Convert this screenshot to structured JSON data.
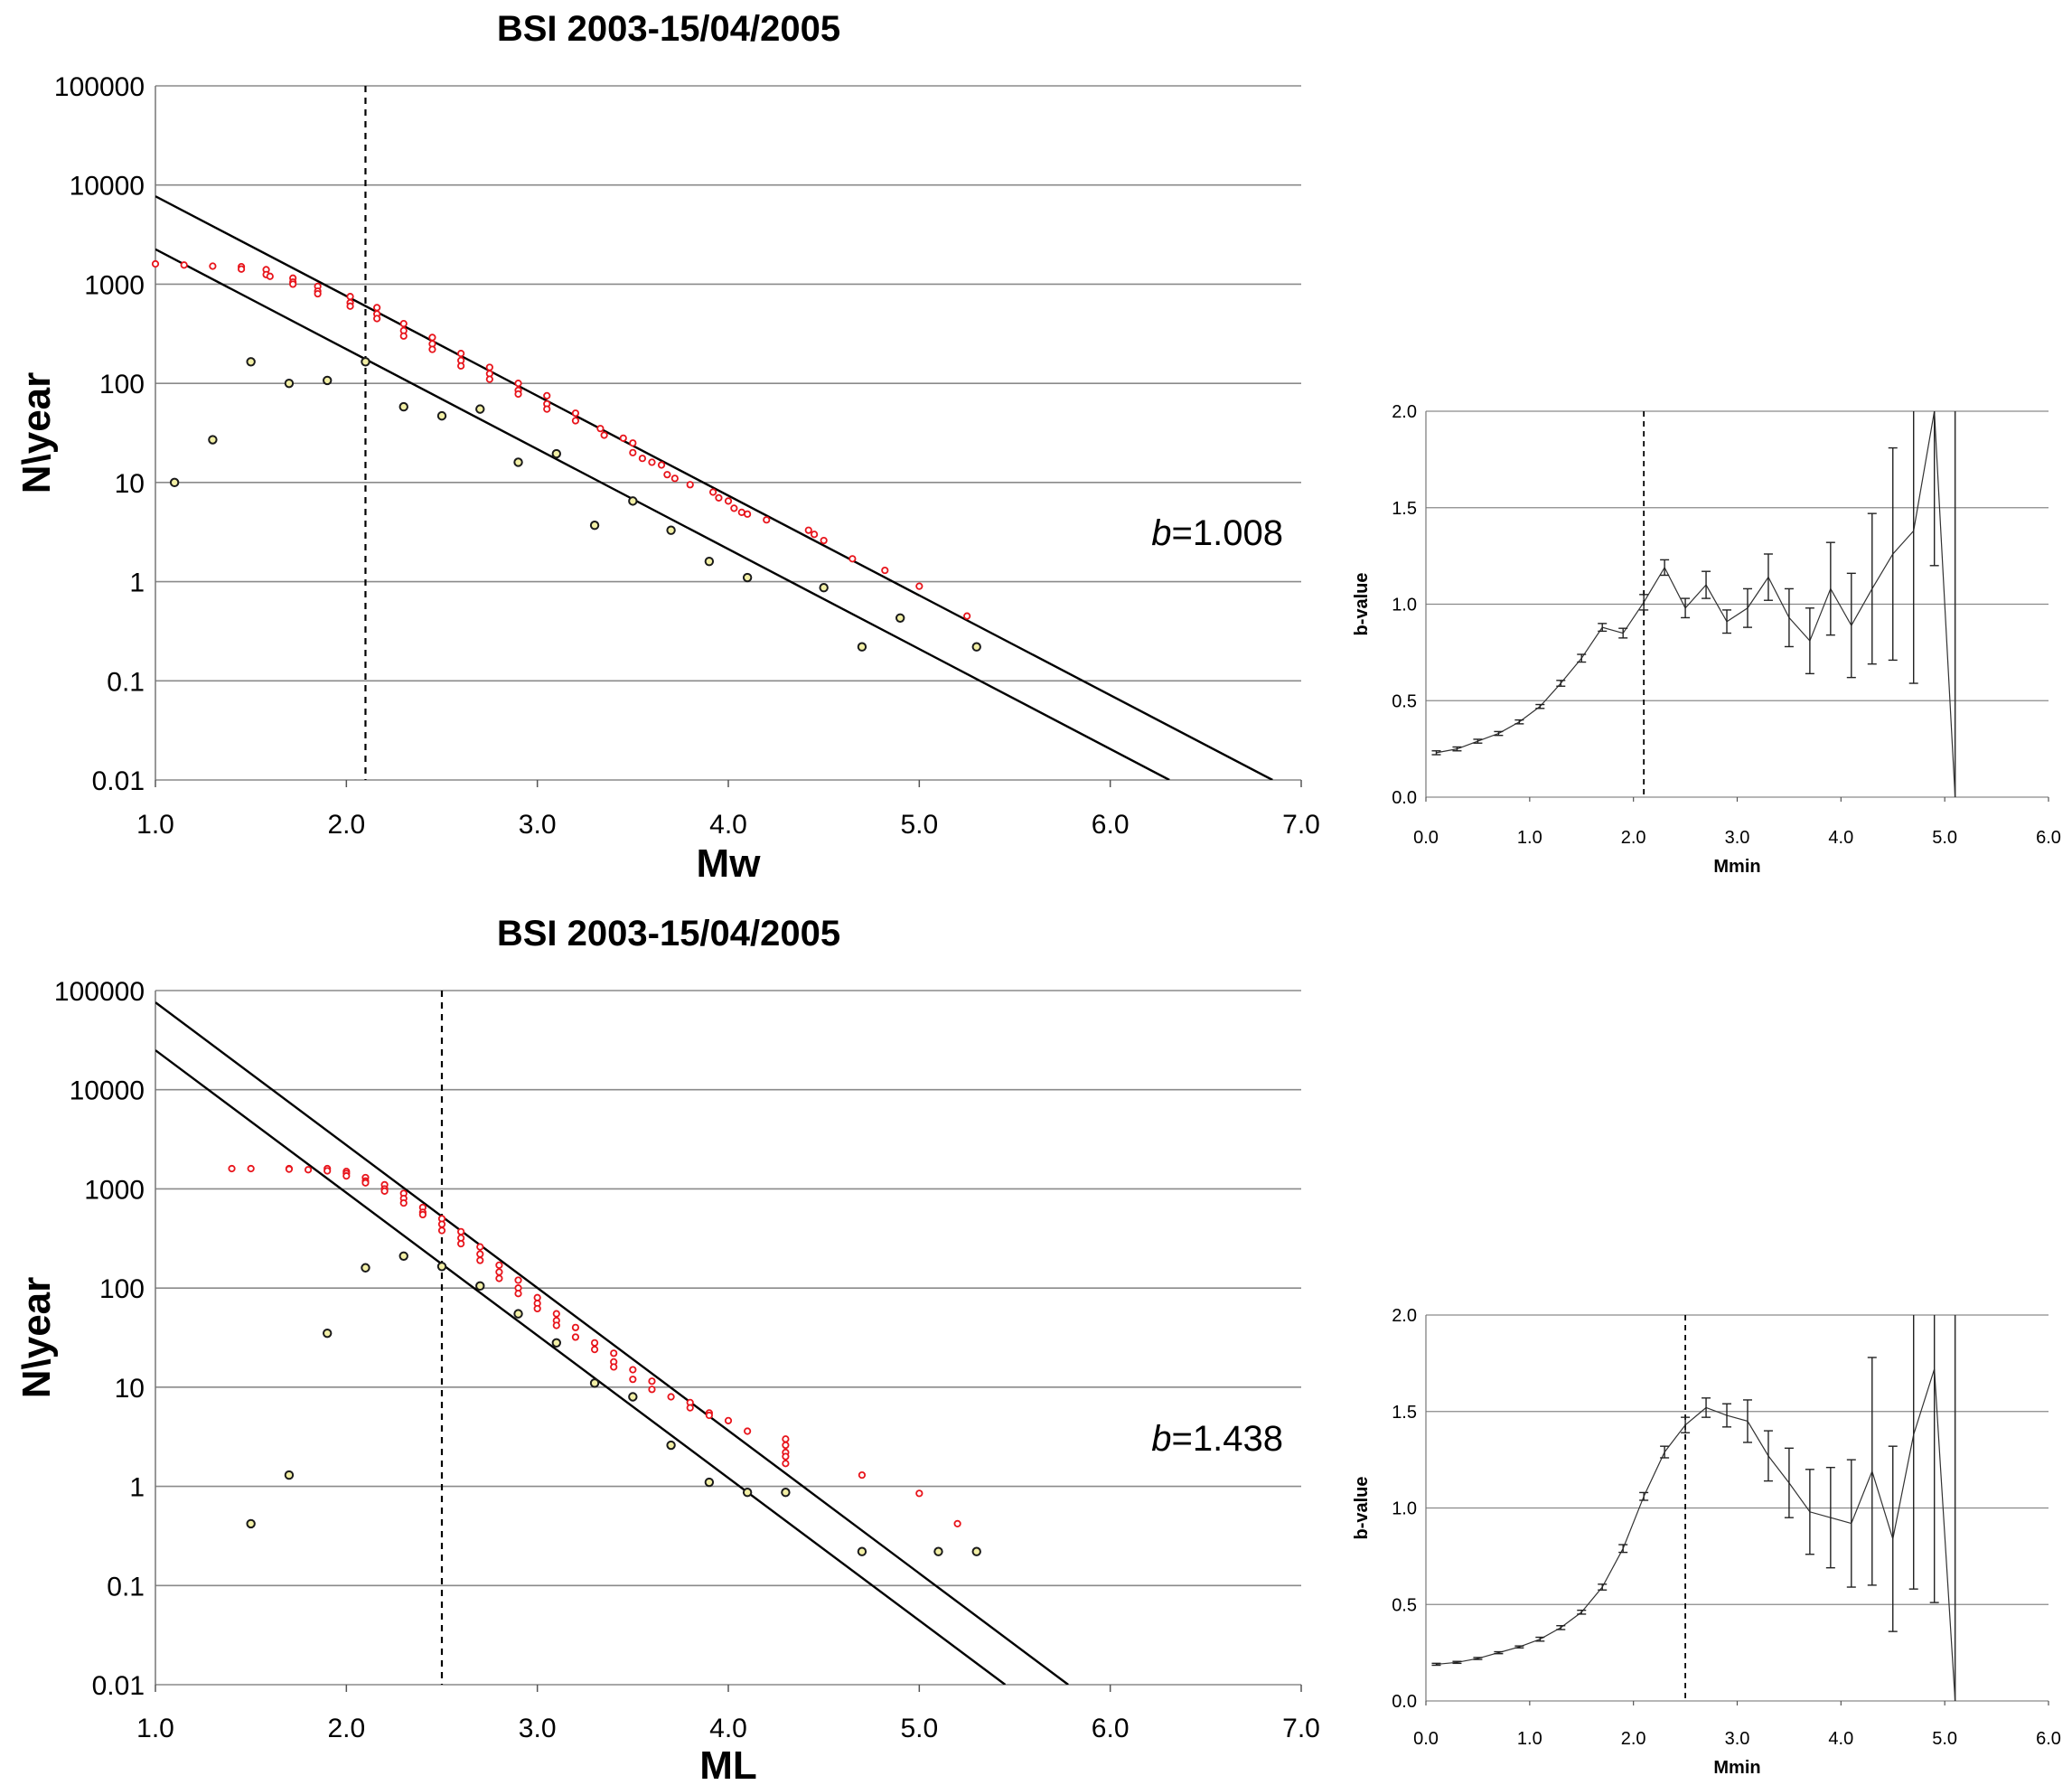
{
  "chart_data": [
    {
      "id": "gr-mw",
      "type": "scatter",
      "title": "BSI 2003-15/04/2005",
      "xlabel": "Mw",
      "ylabel": "N\\year",
      "xlim": [
        1.0,
        7.0
      ],
      "ylim": [
        0.01,
        100000
      ],
      "yscale": "log",
      "xticks": [
        "1.0",
        "2.0",
        "3.0",
        "4.0",
        "5.0",
        "6.0",
        "7.0"
      ],
      "yticks": [
        "0.01",
        "0.1",
        "1",
        "10",
        "100",
        "1000",
        "10000",
        "100000"
      ],
      "grid": "horizontal",
      "annotation": {
        "b_symbol": "b",
        "b_text": "=1.008"
      },
      "vline_x": 2.1,
      "lines": [
        {
          "x": [
            1.0,
            6.85
          ],
          "y": [
            7700,
            0.01
          ]
        },
        {
          "x": [
            1.0,
            6.31
          ],
          "y": [
            2250,
            0.01
          ]
        }
      ],
      "series": [
        {
          "marker": "red-circle",
          "x": [
            1.0,
            1.15,
            1.3,
            1.45,
            1.45,
            1.58,
            1.58,
            1.6,
            1.72,
            1.72,
            1.72,
            1.85,
            1.85,
            1.85,
            2.02,
            2.02,
            2.02,
            2.16,
            2.16,
            2.16,
            2.3,
            2.3,
            2.3,
            2.45,
            2.45,
            2.45,
            2.6,
            2.6,
            2.6,
            2.75,
            2.75,
            2.75,
            2.9,
            2.9,
            2.9,
            3.05,
            3.05,
            3.05,
            3.2,
            3.2,
            3.33,
            3.35,
            3.45,
            3.5,
            3.5,
            3.55,
            3.6,
            3.65,
            3.68,
            3.72,
            3.8,
            3.92,
            3.95,
            4.0,
            4.03,
            4.07,
            4.1,
            4.2,
            4.42,
            4.45,
            4.5,
            4.65,
            4.82,
            5.0,
            5.25
          ],
          "y": [
            1600,
            1560,
            1520,
            1500,
            1420,
            1400,
            1250,
            1200,
            1150,
            1050,
            1000,
            950,
            850,
            800,
            750,
            650,
            600,
            580,
            500,
            450,
            400,
            340,
            300,
            290,
            250,
            220,
            200,
            170,
            150,
            145,
            125,
            110,
            100,
            85,
            78,
            75,
            62,
            55,
            50,
            42,
            35,
            30,
            28,
            25,
            20,
            17.5,
            16,
            15,
            12,
            11,
            9.5,
            8,
            7,
            6.5,
            5.5,
            5,
            4.8,
            4.2,
            3.3,
            3,
            2.6,
            1.7,
            1.3,
            0.9,
            0.45
          ]
        },
        {
          "marker": "black-circle",
          "x": [
            1.1,
            1.3,
            1.5,
            1.7,
            1.9,
            2.1,
            2.3,
            2.5,
            2.7,
            2.9,
            3.1,
            3.3,
            3.5,
            3.7,
            3.9,
            4.1,
            4.5,
            4.7,
            4.9,
            5.3
          ],
          "y": [
            10,
            27,
            165,
            100,
            107,
            165,
            58,
            47,
            55,
            16,
            19.5,
            3.7,
            6.5,
            3.3,
            1.6,
            1.1,
            0.87,
            0.22,
            0.43,
            0.22
          ]
        }
      ]
    },
    {
      "id": "b-mw",
      "type": "line",
      "xlabel": "Mmin",
      "ylabel": "b-value",
      "xlim": [
        0.0,
        6.0
      ],
      "ylim": [
        0.0,
        2.0
      ],
      "xticks": [
        "0.0",
        "1.0",
        "2.0",
        "3.0",
        "4.0",
        "5.0",
        "6.0"
      ],
      "yticks": [
        "0.0",
        "0.5",
        "1.0",
        "1.5",
        "2.0"
      ],
      "grid": "horizontal",
      "vline_x": 2.1,
      "x": [
        0.1,
        0.3,
        0.5,
        0.7,
        0.9,
        1.1,
        1.3,
        1.5,
        1.7,
        1.9,
        2.1,
        2.3,
        2.5,
        2.7,
        2.9,
        3.1,
        3.3,
        3.5,
        3.7,
        3.9,
        4.1,
        4.3,
        4.5,
        4.7,
        4.9,
        5.1
      ],
      "y": [
        0.23,
        0.25,
        0.29,
        0.33,
        0.39,
        0.47,
        0.59,
        0.72,
        0.88,
        0.85,
        1.01,
        1.19,
        0.98,
        1.1,
        0.91,
        0.98,
        1.14,
        0.93,
        0.81,
        1.08,
        0.89,
        1.08,
        1.26,
        1.38,
        2.0,
        0.0
      ],
      "err": [
        0.01,
        0.01,
        0.01,
        0.01,
        0.01,
        0.01,
        0.015,
        0.02,
        0.02,
        0.025,
        0.04,
        0.04,
        0.05,
        0.07,
        0.06,
        0.1,
        0.12,
        0.15,
        0.17,
        0.24,
        0.27,
        0.39,
        0.55,
        0.79,
        0.8,
        0.0
      ]
    },
    {
      "id": "gr-ml",
      "type": "scatter",
      "title": "BSI 2003-15/04/2005",
      "xlabel": "ML",
      "ylabel": "N\\year",
      "xlim": [
        1.0,
        7.0
      ],
      "ylim": [
        0.01,
        100000
      ],
      "yscale": "log",
      "xticks": [
        "1.0",
        "2.0",
        "3.0",
        "4.0",
        "5.0",
        "6.0",
        "7.0"
      ],
      "yticks": [
        "0.01",
        "0.1",
        "1",
        "10",
        "100",
        "1000",
        "10000",
        "100000"
      ],
      "grid": "horizontal",
      "annotation": {
        "b_symbol": "b",
        "b_text": "=1.438"
      },
      "vline_x": 2.5,
      "lines": [
        {
          "x": [
            1.0,
            5.78
          ],
          "y": [
            76000,
            0.01
          ]
        },
        {
          "x": [
            1.0,
            5.45
          ],
          "y": [
            25000,
            0.01
          ]
        }
      ],
      "series": [
        {
          "marker": "red-circle",
          "x": [
            1.4,
            1.5,
            1.7,
            1.7,
            1.8,
            1.9,
            1.9,
            2.0,
            2.0,
            2.0,
            2.1,
            2.1,
            2.1,
            2.2,
            2.2,
            2.2,
            2.3,
            2.3,
            2.3,
            2.4,
            2.4,
            2.4,
            2.5,
            2.5,
            2.5,
            2.6,
            2.6,
            2.6,
            2.7,
            2.7,
            2.7,
            2.8,
            2.8,
            2.8,
            2.9,
            2.9,
            2.9,
            3.0,
            3.0,
            3.0,
            3.1,
            3.1,
            3.1,
            3.2,
            3.2,
            3.3,
            3.3,
            3.4,
            3.4,
            3.4,
            3.5,
            3.5,
            3.6,
            3.6,
            3.7,
            3.8,
            3.8,
            3.9,
            3.9,
            4.0,
            4.1,
            4.3,
            4.3,
            4.3,
            4.3,
            4.3,
            4.7,
            5.0,
            5.2
          ],
          "y": [
            1600,
            1600,
            1600,
            1580,
            1560,
            1600,
            1520,
            1500,
            1430,
            1350,
            1300,
            1200,
            1150,
            1100,
            1000,
            950,
            900,
            800,
            720,
            650,
            580,
            550,
            500,
            440,
            380,
            370,
            320,
            280,
            260,
            220,
            190,
            170,
            145,
            125,
            120,
            100,
            88,
            80,
            70,
            62,
            55,
            47,
            42,
            40,
            32,
            28,
            24,
            22,
            18,
            16,
            15,
            12,
            11.5,
            9.5,
            8,
            7,
            6.2,
            5.5,
            5.2,
            4.6,
            3.6,
            3,
            2.6,
            2.2,
            2.0,
            1.7,
            1.3,
            0.85,
            0.42
          ]
        },
        {
          "marker": "black-circle",
          "x": [
            1.5,
            1.7,
            1.9,
            2.1,
            2.3,
            2.5,
            2.7,
            2.9,
            3.1,
            3.3,
            3.5,
            3.7,
            3.9,
            4.1,
            4.3,
            4.7,
            5.1,
            5.3
          ],
          "y": [
            0.42,
            1.3,
            35,
            160,
            210,
            165,
            105,
            55,
            28,
            11,
            8,
            2.6,
            1.1,
            0.87,
            0.87,
            0.22,
            0.22,
            0.22
          ]
        }
      ]
    },
    {
      "id": "b-ml",
      "type": "line",
      "xlabel": "Mmin",
      "ylabel": "b-value",
      "xlim": [
        0.0,
        6.0
      ],
      "ylim": [
        0.0,
        2.0
      ],
      "xticks": [
        "0.0",
        "1.0",
        "2.0",
        "3.0",
        "4.0",
        "5.0",
        "6.0"
      ],
      "yticks": [
        "0.0",
        "0.5",
        "1.0",
        "1.5",
        "2.0"
      ],
      "grid": "horizontal",
      "vline_x": 2.5,
      "x": [
        0.1,
        0.3,
        0.5,
        0.7,
        0.9,
        1.1,
        1.3,
        1.5,
        1.7,
        1.9,
        2.1,
        2.3,
        2.5,
        2.7,
        2.9,
        3.1,
        3.3,
        3.5,
        3.7,
        3.9,
        4.1,
        4.3,
        4.5,
        4.7,
        4.9,
        5.1
      ],
      "y": [
        0.19,
        0.2,
        0.22,
        0.25,
        0.28,
        0.32,
        0.38,
        0.46,
        0.59,
        0.79,
        1.06,
        1.29,
        1.43,
        1.52,
        1.48,
        1.45,
        1.27,
        1.13,
        0.98,
        0.95,
        0.92,
        1.19,
        0.84,
        1.38,
        1.72,
        0.0
      ],
      "err": [
        0.005,
        0.005,
        0.005,
        0.005,
        0.005,
        0.01,
        0.01,
        0.01,
        0.015,
        0.02,
        0.02,
        0.03,
        0.04,
        0.05,
        0.06,
        0.11,
        0.13,
        0.18,
        0.22,
        0.26,
        0.33,
        0.59,
        0.48,
        0.8,
        1.21,
        0.0
      ]
    }
  ]
}
